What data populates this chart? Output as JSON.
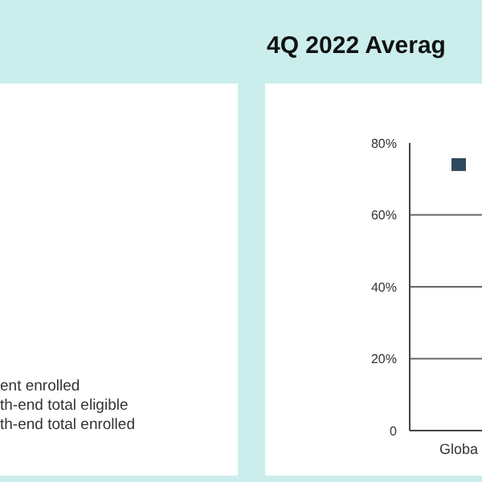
{
  "chart_data": {
    "type": "line",
    "title": "4Q 2022 Averag",
    "categories": [
      "Globa"
    ],
    "series": [
      {
        "color": "#2f4a5e",
        "values": [
          74
        ]
      }
    ],
    "ylim": [
      0,
      80
    ],
    "yticks": [
      {
        "value": 0,
        "label": "0"
      },
      {
        "value": 20,
        "label": "20%"
      },
      {
        "value": 40,
        "label": "40%"
      },
      {
        "value": 60,
        "label": "60%"
      },
      {
        "value": 80,
        "label": "80%"
      }
    ],
    "grid": "y",
    "marker": "square",
    "annotations": [
      "ent enrolled",
      "th-end total eligible",
      "th-end total enrolled"
    ]
  }
}
